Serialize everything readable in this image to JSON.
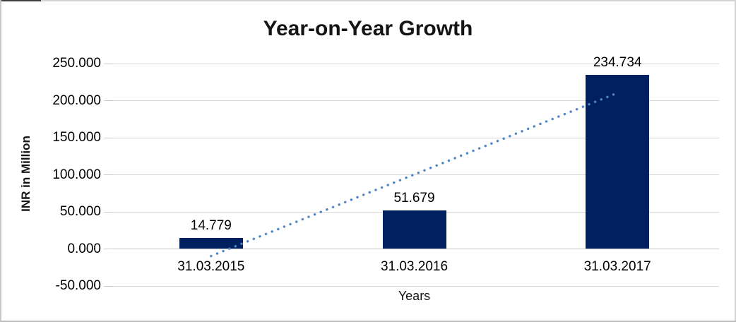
{
  "window": {
    "frame_color": "#d4d4d4",
    "frame_accent_color": "#3f3f3f"
  },
  "chart_data": {
    "type": "bar",
    "title": "Year-on-Year Growth",
    "categories": [
      "31.03.2015",
      "31.03.2016",
      "31.03.2017"
    ],
    "values": [
      14.779,
      51.679,
      234.734
    ],
    "value_labels": [
      "14.779",
      "51.679",
      "234.734"
    ],
    "xlabel": "Years",
    "ylabel": "INR in Million",
    "yticks": [
      "250.000",
      "200.000",
      "150.000",
      "100.000",
      "50.000",
      "0.000",
      "-50.000"
    ],
    "ylim": [
      -50,
      250
    ],
    "grid": "horizontal",
    "legend": "none",
    "bar_color": "#002060",
    "gridline_color": "#d9d9d9",
    "trendline": {
      "type": "linear",
      "style": "dotted",
      "color": "#4f86c6"
    }
  }
}
